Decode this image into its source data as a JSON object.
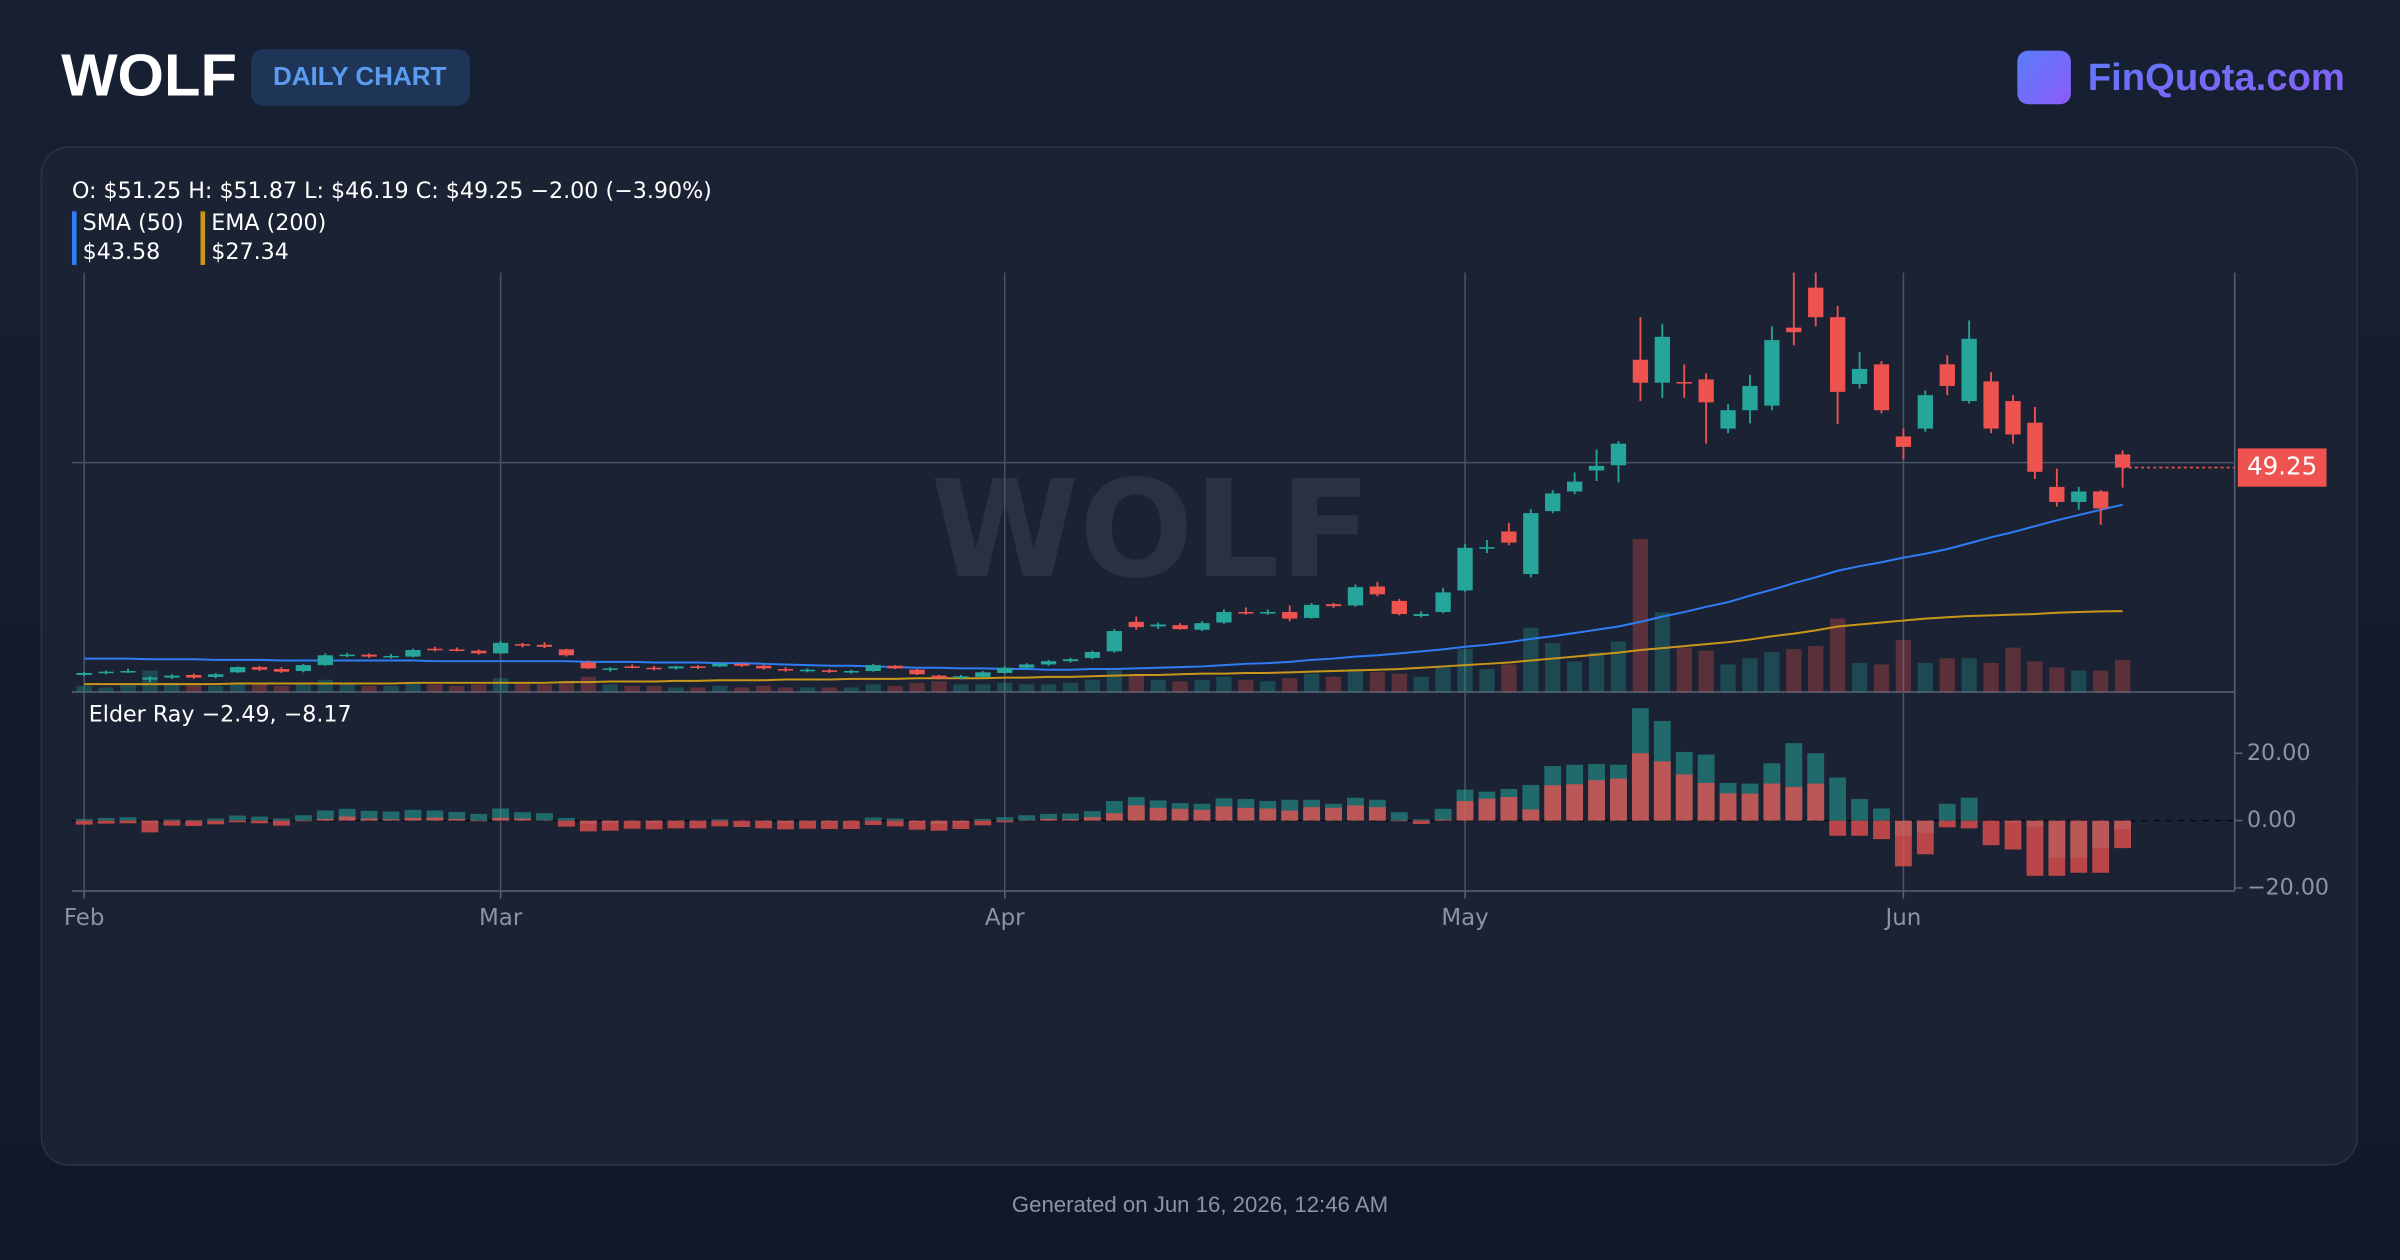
{
  "header": {
    "symbol": "WOLF",
    "badge": "DAILY CHART",
    "brand": "FinQuota.com"
  },
  "footer": "Generated on Jun 16, 2026, 12:46 AM",
  "chart_data": [
    {
      "type": "candlestick",
      "watermark": "WOLF",
      "legend": "O: $51.25 H: $51.87 L: $46.19 C: $49.25 −2.00 (−3.90%)",
      "categories": [
        "Feb",
        null,
        null,
        null,
        null,
        null,
        null,
        null,
        null,
        null,
        null,
        null,
        null,
        null,
        null,
        null,
        null,
        null,
        null,
        "Mar",
        null,
        null,
        null,
        null,
        null,
        null,
        null,
        null,
        null,
        null,
        null,
        null,
        null,
        null,
        null,
        null,
        null,
        null,
        null,
        null,
        null,
        null,
        "Apr",
        null,
        null,
        null,
        null,
        null,
        null,
        null,
        null,
        null,
        null,
        null,
        null,
        null,
        null,
        null,
        null,
        null,
        null,
        null,
        null,
        "May",
        null,
        null,
        null,
        null,
        null,
        null,
        null,
        null,
        null,
        null,
        null,
        null,
        null,
        null,
        null,
        null,
        null,
        null,
        null,
        "Jun",
        null,
        null,
        null,
        null,
        null,
        null,
        null,
        null,
        null,
        null
      ],
      "open": [
        17.6,
        17.9,
        18.1,
        16.9,
        17.2,
        17.6,
        17.3,
        18.0,
        18.8,
        18.5,
        18.2,
        19.1,
        20.6,
        20.7,
        20.4,
        20.4,
        21.6,
        21.5,
        21.3,
        20.9,
        22.3,
        22.2,
        21.5,
        19.5,
        18.4,
        18.9,
        18.7,
        18.6,
        18.9,
        18.9,
        19.3,
        19.0,
        18.5,
        18.3,
        18.3,
        18.0,
        18.2,
        19.0,
        18.4,
        17.5,
        17.2,
        17.3,
        17.9,
        18.7,
        19.2,
        19.7,
        20.2,
        21.2,
        25.7,
        25.0,
        25.2,
        24.5,
        25.6,
        27.2,
        27.0,
        27.2,
        26.3,
        28.4,
        28.2,
        31.1,
        28.9,
        26.6,
        27.2,
        30.5,
        37.0,
        39.5,
        33.0,
        42.6,
        45.6,
        48.8,
        49.6,
        65.7,
        62.2,
        62.3,
        62.7,
        55.2,
        58.0,
        58.7,
        70.6,
        76.7,
        72.2,
        62.0,
        65.0,
        54.0,
        55.2,
        65.0,
        59.4,
        62.4,
        59.4,
        56.1,
        46.3,
        44.0,
        45.6,
        51.25
      ],
      "high": [
        18.1,
        18.3,
        18.6,
        17.4,
        17.7,
        17.8,
        17.9,
        18.9,
        19.0,
        18.8,
        19.3,
        20.9,
        21.0,
        20.9,
        20.8,
        21.6,
        21.9,
        21.8,
        21.5,
        22.8,
        22.5,
        22.6,
        21.6,
        19.8,
        18.8,
        19.2,
        19.0,
        19.0,
        19.1,
        19.5,
        19.4,
        19.2,
        18.8,
        18.6,
        18.5,
        18.4,
        19.3,
        19.1,
        18.5,
        17.6,
        17.6,
        18.2,
        18.9,
        19.4,
        19.9,
        20.2,
        21.3,
        24.6,
        26.5,
        25.6,
        25.5,
        25.8,
        27.6,
        27.9,
        27.6,
        28.2,
        28.6,
        28.6,
        31.4,
        31.8,
        29.2,
        27.3,
        30.9,
        37.6,
        38.2,
        40.8,
        42.9,
        45.8,
        48.5,
        52.0,
        53.3,
        72.2,
        71.2,
        65.0,
        63.6,
        58.9,
        63.4,
        70.8,
        79.0,
        79.0,
        73.9,
        66.9,
        65.5,
        55.2,
        61.0,
        66.4,
        71.7,
        63.8,
        60.3,
        58.5,
        49.1,
        46.3,
        45.8,
        51.87
      ],
      "low": [
        17.4,
        17.7,
        17.9,
        16.5,
        17.0,
        17.0,
        17.1,
        17.9,
        18.2,
        17.9,
        18.0,
        19.0,
        20.3,
        20.2,
        20.1,
        20.3,
        21.2,
        21.2,
        20.7,
        20.8,
        21.8,
        21.7,
        20.4,
        18.5,
        18.1,
        18.6,
        18.3,
        18.4,
        18.5,
        18.8,
        18.8,
        18.4,
        18.1,
        18.0,
        17.9,
        17.8,
        18.1,
        18.5,
        17.6,
        16.9,
        16.9,
        17.2,
        17.8,
        18.6,
        19.0,
        19.5,
        20.0,
        21.0,
        24.5,
        24.6,
        24.5,
        24.3,
        25.4,
        26.8,
        26.8,
        25.8,
        26.2,
        27.8,
        28.0,
        29.6,
        26.7,
        26.4,
        27.0,
        30.3,
        36.2,
        37.4,
        32.5,
        42.3,
        45.2,
        47.2,
        47.0,
        59.4,
        59.9,
        59.9,
        52.9,
        54.5,
        56.0,
        58.0,
        67.9,
        70.8,
        55.9,
        61.3,
        57.5,
        50.5,
        54.7,
        60.3,
        59.0,
        54.5,
        52.9,
        47.5,
        43.3,
        42.8,
        40.5,
        46.19
      ],
      "close": [
        17.9,
        18.1,
        18.2,
        17.2,
        17.5,
        17.2,
        17.7,
        18.8,
        18.4,
        18.1,
        19.1,
        20.6,
        20.7,
        20.4,
        20.5,
        21.4,
        21.5,
        21.4,
        20.9,
        22.5,
        22.2,
        21.9,
        20.6,
        18.6,
        18.6,
        18.7,
        18.5,
        18.9,
        18.7,
        19.3,
        19.0,
        18.6,
        18.3,
        18.4,
        18.1,
        18.2,
        19.1,
        18.6,
        17.7,
        17.1,
        17.4,
        18.0,
        18.7,
        19.2,
        19.7,
        20.0,
        21.1,
        24.3,
        24.9,
        25.3,
        24.6,
        25.5,
        27.2,
        27.1,
        27.2,
        26.2,
        28.3,
        28.1,
        31.0,
        29.9,
        26.9,
        26.9,
        30.2,
        37.0,
        37.1,
        37.8,
        42.3,
        45.3,
        47.1,
        49.5,
        52.9,
        62.2,
        69.2,
        62.2,
        59.2,
        58.0,
        61.7,
        68.7,
        69.9,
        72.2,
        60.8,
        64.3,
        58.0,
        52.4,
        60.3,
        61.7,
        68.9,
        55.2,
        54.3,
        48.6,
        44.0,
        45.6,
        43.0,
        49.25
      ],
      "volume": [
        0.4,
        0.3,
        0.5,
        1.4,
        0.6,
        0.5,
        0.4,
        0.6,
        0.5,
        0.4,
        0.5,
        0.8,
        0.5,
        0.4,
        0.4,
        0.6,
        0.5,
        0.4,
        0.5,
        0.9,
        0.6,
        0.5,
        0.7,
        1.0,
        0.5,
        0.4,
        0.4,
        0.3,
        0.3,
        0.4,
        0.3,
        0.4,
        0.3,
        0.3,
        0.3,
        0.3,
        0.5,
        0.4,
        0.6,
        0.7,
        0.5,
        0.5,
        0.6,
        0.5,
        0.5,
        0.6,
        0.8,
        1.4,
        1.1,
        0.8,
        0.7,
        0.8,
        1.0,
        0.8,
        0.7,
        0.9,
        1.2,
        1.0,
        1.5,
        1.3,
        1.2,
        1.0,
        1.6,
        2.8,
        1.5,
        1.8,
        4.2,
        3.2,
        2.0,
        2.6,
        3.3,
        10.0,
        5.2,
        2.9,
        2.7,
        1.8,
        2.2,
        2.6,
        2.8,
        3.0,
        4.8,
        1.9,
        1.8,
        3.4,
        1.9,
        2.2,
        2.2,
        1.9,
        2.9,
        2.0,
        1.6,
        1.4,
        1.4,
        2.1
      ],
      "vlim": [
        0,
        27.4
      ],
      "up_color": "#26a69a",
      "down_color": "#ef5350",
      "ylim": [
        15,
        79
      ],
      "yticks": [
        50
      ],
      "grid": true,
      "series": [
        {
          "name": "SMA (50)",
          "value_label": "$43.58",
          "color": "#2f7df6",
          "values": [
            20.1,
            20.1,
            20.1,
            20.0,
            20.0,
            20.0,
            19.9,
            19.9,
            19.9,
            19.8,
            19.8,
            19.8,
            19.8,
            19.8,
            19.8,
            19.8,
            19.7,
            19.7,
            19.7,
            19.7,
            19.7,
            19.7,
            19.7,
            19.6,
            19.6,
            19.6,
            19.5,
            19.5,
            19.5,
            19.4,
            19.4,
            19.3,
            19.2,
            19.1,
            19.0,
            19.0,
            18.9,
            18.8,
            18.7,
            18.7,
            18.6,
            18.6,
            18.5,
            18.5,
            18.4,
            18.4,
            18.5,
            18.5,
            18.6,
            18.7,
            18.8,
            18.9,
            19.1,
            19.3,
            19.4,
            19.6,
            19.9,
            20.1,
            20.4,
            20.6,
            20.9,
            21.2,
            21.5,
            21.9,
            22.2,
            22.6,
            23.1,
            23.5,
            24.0,
            24.5,
            25.0,
            25.7,
            26.5,
            27.2,
            28.0,
            28.7,
            29.7,
            30.6,
            31.6,
            32.5,
            33.5,
            34.2,
            34.8,
            35.5,
            36.1,
            36.8,
            37.7,
            38.6,
            39.4,
            40.3,
            41.2,
            42.0,
            42.8,
            43.58
          ]
        },
        {
          "name": "EMA (200)",
          "value_label": "$27.34",
          "color": "#c9961a",
          "values": [
            16.2,
            16.2,
            16.2,
            16.2,
            16.2,
            16.2,
            16.2,
            16.3,
            16.3,
            16.3,
            16.3,
            16.3,
            16.3,
            16.3,
            16.3,
            16.4,
            16.4,
            16.4,
            16.4,
            16.4,
            16.4,
            16.4,
            16.5,
            16.5,
            16.6,
            16.6,
            16.6,
            16.7,
            16.7,
            16.8,
            16.8,
            16.8,
            16.9,
            16.9,
            16.9,
            17.0,
            17.0,
            17.0,
            17.1,
            17.1,
            17.1,
            17.1,
            17.2,
            17.2,
            17.3,
            17.3,
            17.4,
            17.5,
            17.6,
            17.6,
            17.7,
            17.8,
            17.8,
            17.9,
            17.9,
            18.0,
            18.1,
            18.2,
            18.3,
            18.4,
            18.5,
            18.7,
            18.9,
            19.1,
            19.3,
            19.5,
            19.8,
            20.1,
            20.4,
            20.7,
            21.0,
            21.4,
            21.7,
            22.0,
            22.3,
            22.6,
            23.0,
            23.5,
            23.9,
            24.4,
            25.0,
            25.3,
            25.6,
            25.9,
            26.2,
            26.4,
            26.6,
            26.7,
            26.8,
            26.9,
            27.1,
            27.2,
            27.3,
            27.34
          ]
        }
      ]
    },
    {
      "type": "bar",
      "title": "Elder Ray −2.49, −8.17",
      "ylim": [
        -20.9,
        38.2
      ],
      "yticks": [
        {
          "value": 20,
          "label": "20.00"
        },
        {
          "value": 0,
          "label": "0.00"
        },
        {
          "value": -20,
          "label": "−20.00"
        }
      ],
      "series": [
        {
          "color": "#26a69a",
          "values": [
            0.5,
            0.8,
            1.0,
            -0.5,
            0.3,
            0.2,
            0.6,
            1.5,
            1.2,
            0.6,
            1.6,
            3.0,
            3.5,
            2.9,
            2.7,
            3.2,
            3.0,
            2.6,
            2.0,
            3.6,
            2.5,
            2.2,
            0.8,
            -1.0,
            -0.6,
            -0.2,
            -0.5,
            -0.2,
            -0.1,
            0.4,
            0.0,
            -0.3,
            -0.6,
            -0.2,
            -0.4,
            -0.2,
            0.9,
            0.6,
            -0.4,
            -1.0,
            -0.5,
            0.5,
            1.0,
            1.6,
            2.0,
            2.1,
            2.8,
            5.8,
            7.0,
            6.0,
            5.2,
            5.0,
            6.6,
            6.4,
            5.8,
            6.2,
            6.2,
            5.0,
            6.8,
            6.2,
            2.5,
            0.4,
            3.5,
            9.2,
            8.6,
            9.4,
            10.6,
            16.2,
            16.6,
            16.8,
            16.6,
            33.4,
            29.6,
            20.4,
            19.6,
            11.2,
            11.0,
            17.0,
            23.0,
            20.0,
            12.8,
            6.4,
            3.6,
            -4.5,
            -3.6,
            5.0,
            6.8,
            0.0,
            -0.5,
            -1.8,
            -11.0,
            -11.0,
            -8.0,
            -2.49
          ]
        },
        {
          "color": "#ef5350",
          "values": [
            -1.2,
            -0.9,
            -0.8,
            -3.5,
            -1.5,
            -1.6,
            -1.1,
            -0.5,
            -0.8,
            -1.5,
            -0.2,
            0.5,
            1.2,
            0.6,
            0.4,
            0.8,
            0.9,
            0.5,
            -0.2,
            0.8,
            0.6,
            0.1,
            -1.8,
            -3.2,
            -3.0,
            -2.4,
            -2.6,
            -2.3,
            -2.3,
            -1.7,
            -1.9,
            -2.3,
            -2.6,
            -2.4,
            -2.5,
            -2.5,
            -1.3,
            -1.7,
            -2.7,
            -3.0,
            -2.5,
            -1.4,
            -0.5,
            0.1,
            0.5,
            0.4,
            1.0,
            2.2,
            4.5,
            3.8,
            3.5,
            3.2,
            4.2,
            3.8,
            3.6,
            3.0,
            4.0,
            3.8,
            4.5,
            4.0,
            -0.2,
            -1.0,
            0.3,
            5.8,
            6.5,
            7.0,
            3.3,
            10.5,
            10.8,
            12.0,
            12.5,
            20.0,
            17.6,
            13.7,
            11.2,
            8.1,
            8.0,
            11.0,
            10.0,
            11.0,
            -4.5,
            -4.5,
            -5.5,
            -13.6,
            -10.0,
            -2.0,
            -2.3,
            -7.3,
            -8.6,
            -16.4,
            -16.4,
            -15.5,
            -15.5,
            -8.17
          ]
        }
      ]
    }
  ]
}
